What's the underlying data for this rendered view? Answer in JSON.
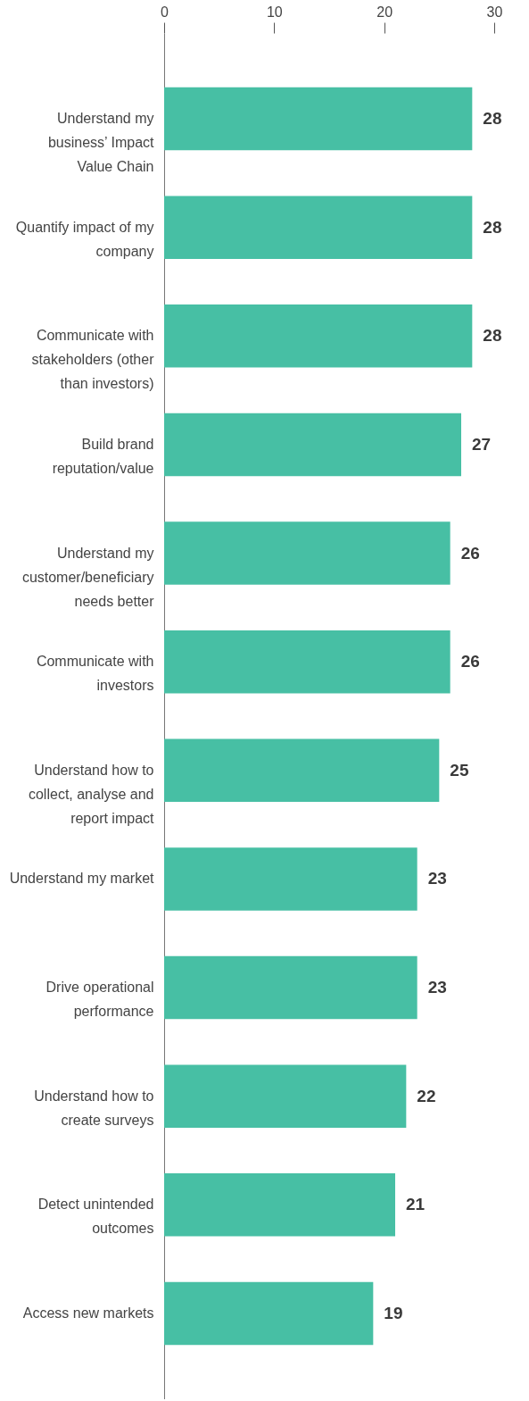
{
  "chart_data": {
    "type": "bar",
    "orientation": "horizontal",
    "categories": [
      "Understand my business’ Impact Value Chain",
      "Quantify impact of my company",
      "Communicate with stakeholders (other than investors)",
      "Build brand reputation/value",
      "Understand my customer/beneficiary needs better",
      "Communicate with investors",
      "Understand how to collect, analyse and report impact",
      "Understand my market",
      "Drive operational performance",
      "Understand how to create surveys",
      "Detect unintended outcomes",
      "Access new markets"
    ],
    "values": [
      28,
      28,
      28,
      27,
      26,
      26,
      25,
      23,
      23,
      22,
      21,
      19
    ],
    "color": "#47bfa4",
    "xlim": [
      0,
      30
    ],
    "xticks": [
      0,
      10,
      20,
      30
    ],
    "data_labels": true
  }
}
